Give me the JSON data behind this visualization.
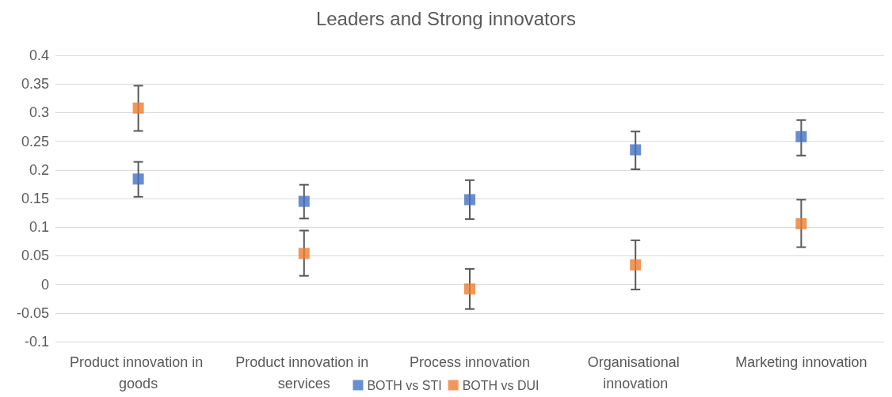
{
  "chart_data": {
    "type": "scatter",
    "title": "Leaders and Strong innovators",
    "categories": [
      "Product innovation in goods",
      "Product innovation in services",
      "Process innovation",
      "Organisational innovation",
      "Marketing innovation"
    ],
    "series": [
      {
        "name": "BOTH vs STI",
        "color": "#4472c4",
        "values": [
          0.184,
          0.145,
          0.148,
          0.235,
          0.258
        ],
        "errors": [
          [
            0.153,
            0.214
          ],
          [
            0.115,
            0.174
          ],
          [
            0.114,
            0.182
          ],
          [
            0.201,
            0.267
          ],
          [
            0.225,
            0.287
          ]
        ]
      },
      {
        "name": "BOTH vs DUI",
        "color": "#ed7d31",
        "values": [
          0.308,
          0.054,
          -0.008,
          0.034,
          0.106
        ],
        "errors": [
          [
            0.268,
            0.347
          ],
          [
            0.015,
            0.094
          ],
          [
            -0.043,
            0.027
          ],
          [
            -0.009,
            0.077
          ],
          [
            0.065,
            0.148
          ]
        ]
      }
    ],
    "ylim": [
      -0.1,
      0.4
    ],
    "yticks": [
      -0.1,
      -0.05,
      0,
      0.05,
      0.1,
      0.15,
      0.2,
      0.25,
      0.3,
      0.35,
      0.4
    ],
    "grid": "y",
    "legend": "bottom",
    "marker": "square"
  }
}
